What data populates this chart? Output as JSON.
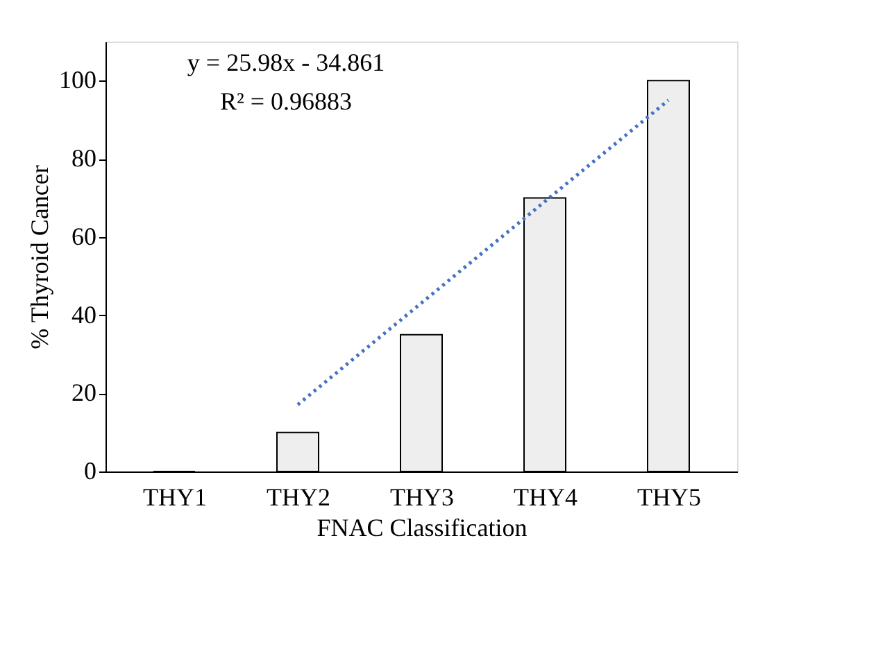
{
  "chart_data": {
    "type": "bar",
    "xlabel": "FNAC Classification",
    "ylabel": "% Thyroid Cancer",
    "categories": [
      "THY1",
      "THY2",
      "THY3",
      "THY4",
      "THY5"
    ],
    "series": [
      {
        "color": "#eeeeee",
        "values": [
          0,
          10,
          35,
          70,
          100
        ]
      },
      {
        "type": "line",
        "color": "#4472c4",
        "line_style": "dotted",
        "values": [
          null,
          17.1,
          43.1,
          69.1,
          95.0
        ]
      }
    ],
    "ylim": [
      0,
      110
    ],
    "yticks": [
      0,
      20,
      40,
      60,
      80,
      100
    ],
    "grid": false,
    "annotations": [
      "y = 25.98x - 34.861",
      "R² = 0.96883"
    ]
  }
}
